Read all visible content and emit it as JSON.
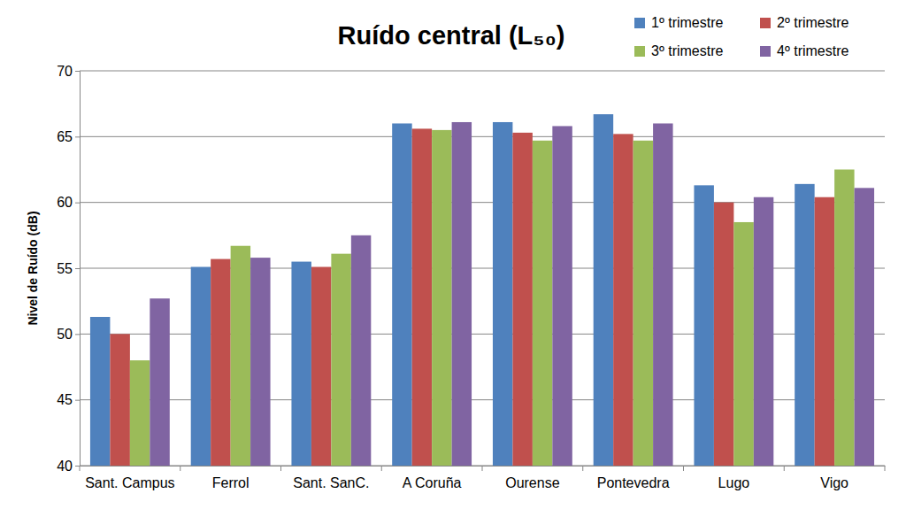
{
  "chart_data": {
    "type": "bar",
    "title": "Ruído central (L₅₀)",
    "y_label": "Nivel de Ruído (dB)",
    "categories": [
      "Sant. Campus",
      "Ferrol",
      "Sant. SanC.",
      "A Coruña",
      "Ourense",
      "Pontevedra",
      "Lugo",
      "Vigo"
    ],
    "series": [
      {
        "name": "1º trimestre",
        "color": "#4f81bd",
        "values": [
          51.3,
          55.1,
          55.5,
          66.0,
          66.1,
          66.7,
          61.3,
          61.4
        ]
      },
      {
        "name": "2º trimestre",
        "color": "#c0504d",
        "values": [
          50.0,
          55.7,
          55.1,
          65.6,
          65.3,
          65.2,
          60.0,
          60.4
        ]
      },
      {
        "name": "3º trimestre",
        "color": "#9bbb59",
        "values": [
          48.0,
          56.7,
          56.1,
          65.5,
          64.7,
          64.7,
          58.5,
          62.5
        ]
      },
      {
        "name": "4º trimestre",
        "color": "#8064a2",
        "values": [
          52.7,
          55.8,
          57.5,
          66.1,
          65.8,
          66.0,
          60.4,
          61.1
        ]
      }
    ],
    "ylim": [
      40,
      70
    ],
    "yticks": [
      40,
      45,
      50,
      55,
      60,
      65,
      70
    ],
    "grid": true,
    "legend": "top-right"
  }
}
